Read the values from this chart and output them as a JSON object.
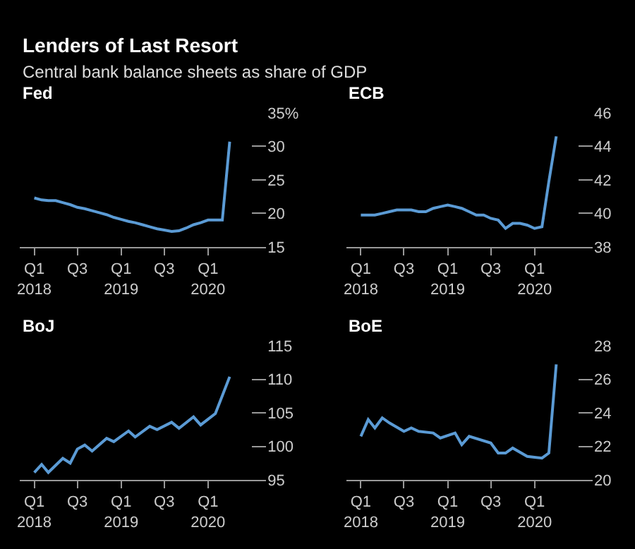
{
  "chart_data": [
    {
      "type": "line",
      "title": "Fed",
      "annotations": [
        "Lenders of Last Resort",
        "Central bank balance sheets as share of GDP"
      ],
      "color": "#5b9bd5",
      "grid": false,
      "marker": "none",
      "x": [
        "2018-01",
        "2018-02",
        "2018-03",
        "2018-04",
        "2018-05",
        "2018-06",
        "2018-07",
        "2018-08",
        "2018-09",
        "2018-10",
        "2018-11",
        "2018-12",
        "2019-01",
        "2019-02",
        "2019-03",
        "2019-04",
        "2019-05",
        "2019-06",
        "2019-07",
        "2019-08",
        "2019-09",
        "2019-10",
        "2019-11",
        "2019-12",
        "2020-01",
        "2020-02",
        "2020-03",
        "2020-04"
      ],
      "values": [
        22.3,
        22.0,
        21.9,
        21.9,
        21.6,
        21.3,
        20.9,
        20.7,
        20.4,
        20.1,
        19.8,
        19.4,
        19.1,
        18.8,
        18.6,
        18.3,
        18.0,
        17.7,
        17.5,
        17.3,
        17.4,
        17.8,
        18.3,
        18.6,
        19.0,
        19.0,
        19.0,
        30.7
      ],
      "xlim": [
        "2017-11",
        "2020-09"
      ],
      "xticks": [
        {
          "value": "2018-01",
          "label": "Q1\n2018"
        },
        {
          "value": "2018-07",
          "label": "Q3"
        },
        {
          "value": "2019-01",
          "label": "Q1\n2019"
        },
        {
          "value": "2019-07",
          "label": "Q3"
        },
        {
          "value": "2020-01",
          "label": "Q1\n2020"
        }
      ],
      "ylim": [
        15,
        35
      ],
      "yticks": [
        15,
        20,
        25,
        30,
        {
          "value": 35,
          "label": "35%"
        }
      ]
    },
    {
      "type": "line",
      "title": "ECB",
      "color": "#5b9bd5",
      "grid": false,
      "marker": "none",
      "x": [
        "2018-01",
        "2018-02",
        "2018-03",
        "2018-04",
        "2018-05",
        "2018-06",
        "2018-07",
        "2018-08",
        "2018-09",
        "2018-10",
        "2018-11",
        "2018-12",
        "2019-01",
        "2019-02",
        "2019-03",
        "2019-04",
        "2019-05",
        "2019-06",
        "2019-07",
        "2019-08",
        "2019-09",
        "2019-10",
        "2019-11",
        "2019-12",
        "2020-01",
        "2020-02",
        "2020-03",
        "2020-04"
      ],
      "values": [
        39.9,
        39.9,
        39.9,
        40.0,
        40.1,
        40.2,
        40.2,
        40.2,
        40.1,
        40.1,
        40.3,
        40.4,
        40.5,
        40.4,
        40.3,
        40.1,
        39.9,
        39.9,
        39.7,
        39.6,
        39.1,
        39.4,
        39.4,
        39.3,
        39.1,
        39.2,
        41.9,
        44.6
      ],
      "xlim": [
        "2017-11",
        "2020-09"
      ],
      "xticks": [
        {
          "value": "2018-01",
          "label": "Q1\n2018"
        },
        {
          "value": "2018-07",
          "label": "Q3"
        },
        {
          "value": "2019-01",
          "label": "Q1\n2019"
        },
        {
          "value": "2019-07",
          "label": "Q3"
        },
        {
          "value": "2020-01",
          "label": "Q1\n2020"
        }
      ],
      "ylim": [
        38,
        46
      ],
      "yticks": [
        38,
        40,
        42,
        44,
        46
      ]
    },
    {
      "type": "line",
      "title": "BoJ",
      "color": "#5b9bd5",
      "grid": false,
      "marker": "none",
      "x": [
        "2018-01",
        "2018-02",
        "2018-03",
        "2018-05",
        "2018-06",
        "2018-07",
        "2018-08",
        "2018-09",
        "2018-11",
        "2018-12",
        "2019-02",
        "2019-03",
        "2019-05",
        "2019-06",
        "2019-08",
        "2019-09",
        "2019-11",
        "2019-12",
        "2020-02",
        "2020-04"
      ],
      "values": [
        96.1,
        97.3,
        96.1,
        98.2,
        97.5,
        99.6,
        100.2,
        99.3,
        101.2,
        100.7,
        102.3,
        101.4,
        103.0,
        102.5,
        103.6,
        102.7,
        104.4,
        103.2,
        104.9,
        110.4
      ],
      "xlim": [
        "2017-11",
        "2020-09"
      ],
      "xticks": [
        {
          "value": "2018-01",
          "label": "Q1\n2018"
        },
        {
          "value": "2018-07",
          "label": "Q3"
        },
        {
          "value": "2019-01",
          "label": "Q1\n2019"
        },
        {
          "value": "2019-07",
          "label": "Q3"
        },
        {
          "value": "2020-01",
          "label": "Q1\n2020"
        }
      ],
      "ylim": [
        95,
        115
      ],
      "yticks": [
        95,
        100,
        105,
        110,
        115
      ]
    },
    {
      "type": "line",
      "title": "BoE",
      "color": "#5b9bd5",
      "grid": false,
      "marker": "none",
      "x": [
        "2018-01",
        "2018-02",
        "2018-03",
        "2018-04",
        "2018-05",
        "2018-07",
        "2018-08",
        "2018-09",
        "2018-11",
        "2018-12",
        "2019-02",
        "2019-03",
        "2019-04",
        "2019-07",
        "2019-08",
        "2019-09",
        "2019-10",
        "2019-12",
        "2020-02",
        "2020-03",
        "2020-04"
      ],
      "values": [
        22.6,
        23.6,
        23.1,
        23.7,
        23.4,
        22.9,
        23.1,
        22.9,
        22.8,
        22.5,
        22.8,
        22.1,
        22.6,
        22.2,
        21.6,
        21.6,
        21.9,
        21.4,
        21.3,
        21.6,
        26.9
      ],
      "xlim": [
        "2017-11",
        "2020-09"
      ],
      "xticks": [
        {
          "value": "2018-01",
          "label": "Q1\n2018"
        },
        {
          "value": "2018-07",
          "label": "Q3"
        },
        {
          "value": "2019-01",
          "label": "Q1\n2019"
        },
        {
          "value": "2019-07",
          "label": "Q3"
        },
        {
          "value": "2020-01",
          "label": "Q1\n2020"
        }
      ],
      "ylim": [
        20,
        28
      ],
      "yticks": [
        20,
        22,
        24,
        26,
        28
      ]
    }
  ]
}
